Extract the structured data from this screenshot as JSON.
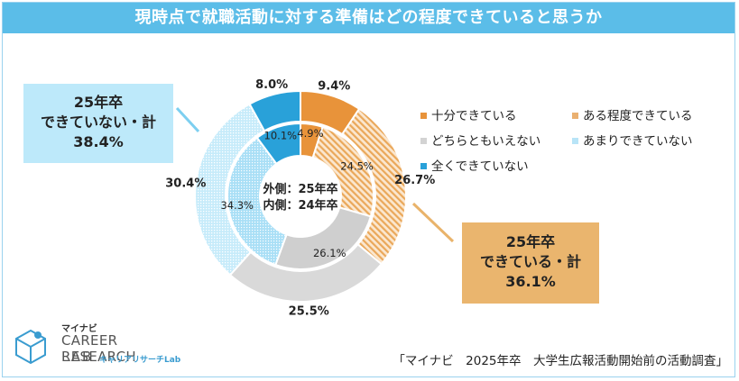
{
  "title": "現時点で就職活動に対する準備はどの程度できていると思うか",
  "center_label": {
    "line1": "外側：25年卒",
    "line2": "内側：24年卒"
  },
  "callouts": {
    "not_ready": {
      "line1": "25年卒",
      "line2": "できていない・計",
      "value": "38.4%"
    },
    "ready": {
      "line1": "25年卒",
      "line2": "できている・計",
      "value": "36.1%"
    }
  },
  "source": "「マイナビ　2025年卒　大学生広報活動開始前の活動調査」",
  "logo": {
    "sub": "マイナビ",
    "main": "CAREER RESEARCH",
    "lab": "LAB",
    "tag": "キャリアリサーチLab"
  },
  "colors": {
    "title_bar": "#5bbde8",
    "sufficient": "#e8933a",
    "somewhat": "#f1c38c",
    "neutral": "#d9d9d9",
    "not_much": "#b8e4f7",
    "not_at_all": "#29a1d9"
  },
  "chart_data": {
    "type": "donut",
    "title": "現時点で就職活動に対する準備はどの程度できていると思うか",
    "categories": [
      "十分できている",
      "ある程度できている",
      "どちらともいえない",
      "あまりできていない",
      "全くできていない"
    ],
    "series": [
      {
        "name": "25年卒",
        "ring": "outer",
        "values": [
          9.4,
          26.7,
          25.5,
          30.4,
          8.0
        ],
        "labels": [
          "9.4%",
          "26.7%",
          "25.5%",
          "30.4%",
          "8.0%"
        ]
      },
      {
        "name": "24年卒",
        "ring": "inner",
        "values": [
          4.9,
          24.5,
          26.1,
          34.3,
          10.1
        ],
        "labels": [
          "4.9%",
          "24.5%",
          "26.1%",
          "34.3%",
          "10.1%"
        ]
      }
    ],
    "legend": [
      "十分できている",
      "ある程度できている",
      "どちらともいえない",
      "あまりできていない",
      "全くできていない"
    ]
  }
}
